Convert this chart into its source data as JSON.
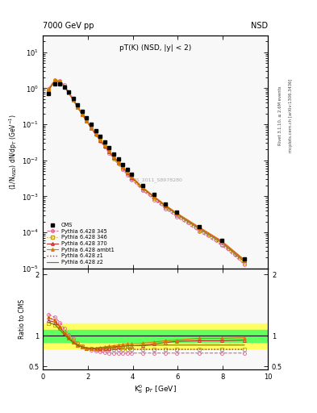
{
  "title_left": "7000 GeV pp",
  "title_right": "NSD",
  "plot_title": "pT(K) (NSD, |y| < 2)",
  "ylabel_main": "(1/N$_{NSD}$) dN/dp$_T$ (GeV$^{-1}$)",
  "ylabel_ratio": "Ratio to CMS",
  "xlabel": "K$^0_S$ p$_T$ [GeV]",
  "watermark": "CMS_2011_S8978280",
  "rivet_label": "Rivet 3.1.10, ≥ 2.6M events",
  "mcplots_label": "mcplots.cern.ch [arXiv:1306.3436]",
  "cms_pt": [
    0.25,
    0.55,
    0.75,
    0.95,
    1.15,
    1.35,
    1.55,
    1.75,
    1.95,
    2.15,
    2.35,
    2.55,
    2.75,
    2.95,
    3.15,
    3.35,
    3.55,
    3.75,
    3.95,
    4.45,
    4.95,
    5.45,
    5.95,
    6.95,
    7.95,
    8.95
  ],
  "cms_val": [
    0.72,
    1.35,
    1.35,
    1.1,
    0.78,
    0.53,
    0.35,
    0.23,
    0.155,
    0.1,
    0.068,
    0.046,
    0.032,
    0.022,
    0.015,
    0.011,
    0.0077,
    0.0055,
    0.004,
    0.002,
    0.0011,
    0.00062,
    0.00037,
    0.000145,
    6e-05,
    1.8e-05
  ],
  "cms_err": [
    0.04,
    0.05,
    0.04,
    0.03,
    0.025,
    0.015,
    0.012,
    0.008,
    0.005,
    0.003,
    0.002,
    0.0015,
    0.001,
    0.0008,
    0.0005,
    0.0004,
    0.00025,
    0.00018,
    0.00012,
    6e-05,
    3.5e-05,
    1.8e-05,
    1e-05,
    4e-06,
    1.5e-06,
    5e-07
  ],
  "py345_pt": [
    0.25,
    0.55,
    0.75,
    0.95,
    1.15,
    1.35,
    1.55,
    1.75,
    1.95,
    2.15,
    2.35,
    2.55,
    2.75,
    2.95,
    3.15,
    3.35,
    3.55,
    3.75,
    3.95,
    4.45,
    4.95,
    5.45,
    5.95,
    6.95,
    7.95,
    8.95
  ],
  "py345_ratio": [
    1.35,
    1.3,
    1.22,
    1.12,
    1.02,
    0.95,
    0.88,
    0.83,
    0.79,
    0.77,
    0.75,
    0.74,
    0.73,
    0.72,
    0.72,
    0.72,
    0.72,
    0.72,
    0.72,
    0.72,
    0.72,
    0.72,
    0.72,
    0.72,
    0.72,
    0.72
  ],
  "py346_pt": [
    0.25,
    0.55,
    0.75,
    0.95,
    1.15,
    1.35,
    1.55,
    1.75,
    1.95,
    2.15,
    2.35,
    2.55,
    2.75,
    2.95,
    3.15,
    3.35,
    3.55,
    3.75,
    3.95,
    4.45,
    4.95,
    5.45,
    5.95,
    6.95,
    7.95,
    8.95
  ],
  "py346_ratio": [
    1.2,
    1.18,
    1.12,
    1.05,
    0.98,
    0.92,
    0.87,
    0.83,
    0.8,
    0.79,
    0.78,
    0.78,
    0.78,
    0.78,
    0.78,
    0.78,
    0.78,
    0.78,
    0.78,
    0.78,
    0.78,
    0.78,
    0.78,
    0.78,
    0.78,
    0.78
  ],
  "py370_pt": [
    0.25,
    0.55,
    0.75,
    0.95,
    1.15,
    1.35,
    1.55,
    1.75,
    1.95,
    2.15,
    2.35,
    2.55,
    2.75,
    2.95,
    3.15,
    3.35,
    3.55,
    3.75,
    3.95,
    4.45,
    4.95,
    5.45,
    5.95,
    6.95,
    7.95,
    8.95
  ],
  "py370_ratio": [
    1.25,
    1.22,
    1.15,
    1.05,
    0.97,
    0.9,
    0.85,
    0.82,
    0.8,
    0.79,
    0.79,
    0.79,
    0.79,
    0.8,
    0.81,
    0.82,
    0.83,
    0.84,
    0.84,
    0.85,
    0.87,
    0.89,
    0.91,
    0.92,
    0.92,
    0.93
  ],
  "pyambt1_pt": [
    0.25,
    0.55,
    0.75,
    0.95,
    1.15,
    1.35,
    1.55,
    1.75,
    1.95,
    2.15,
    2.35,
    2.55,
    2.75,
    2.95,
    3.15,
    3.35,
    3.55,
    3.75,
    3.95,
    4.45,
    4.95,
    5.45,
    5.95,
    6.95,
    7.95,
    8.95
  ],
  "pyambt1_ratio": [
    1.3,
    1.25,
    1.15,
    1.05,
    0.97,
    0.9,
    0.85,
    0.82,
    0.8,
    0.79,
    0.8,
    0.81,
    0.82,
    0.83,
    0.84,
    0.85,
    0.86,
    0.87,
    0.87,
    0.88,
    0.9,
    0.92,
    0.93,
    0.96,
    0.96,
    0.97
  ],
  "pyz1_pt": [
    0.25,
    0.55,
    0.75,
    0.95,
    1.15,
    1.35,
    1.55,
    1.75,
    1.95,
    2.15,
    2.35,
    2.55,
    2.75,
    2.95,
    3.15,
    3.35,
    3.55,
    3.75,
    3.95,
    4.45,
    4.95,
    5.45,
    5.95,
    6.95,
    7.95,
    8.95
  ],
  "pyz1_ratio": [
    1.3,
    1.25,
    1.15,
    1.05,
    0.97,
    0.9,
    0.85,
    0.82,
    0.8,
    0.79,
    0.78,
    0.78,
    0.78,
    0.78,
    0.78,
    0.78,
    0.78,
    0.78,
    0.78,
    0.78,
    0.78,
    0.78,
    0.78,
    0.78,
    0.78,
    0.78
  ],
  "pyz2_pt": [
    0.25,
    0.55,
    0.75,
    0.95,
    1.15,
    1.35,
    1.55,
    1.75,
    1.95,
    2.15,
    2.35,
    2.55,
    2.75,
    2.95,
    3.15,
    3.35,
    3.55,
    3.75,
    3.95,
    4.45,
    4.95,
    5.45,
    5.95,
    6.95,
    7.95,
    8.95
  ],
  "pyz2_ratio": [
    1.22,
    1.18,
    1.1,
    1.02,
    0.95,
    0.89,
    0.84,
    0.82,
    0.8,
    0.8,
    0.8,
    0.81,
    0.81,
    0.82,
    0.82,
    0.83,
    0.83,
    0.84,
    0.84,
    0.84,
    0.85,
    0.85,
    0.85,
    0.85,
    0.85,
    0.85
  ],
  "color_345": "#e06090",
  "color_346": "#c8a000",
  "color_370": "#c03030",
  "color_ambt1": "#e07800",
  "color_z1": "#b03030",
  "color_z2": "#787800",
  "bg_color": "#f8f8f8",
  "green_band": [
    0.9,
    1.1
  ],
  "yellow_band": [
    0.8,
    1.2
  ],
  "xlim": [
    0,
    10
  ],
  "ylim_main": [
    1e-05,
    30
  ],
  "ylim_ratio": [
    0.45,
    2.1
  ]
}
